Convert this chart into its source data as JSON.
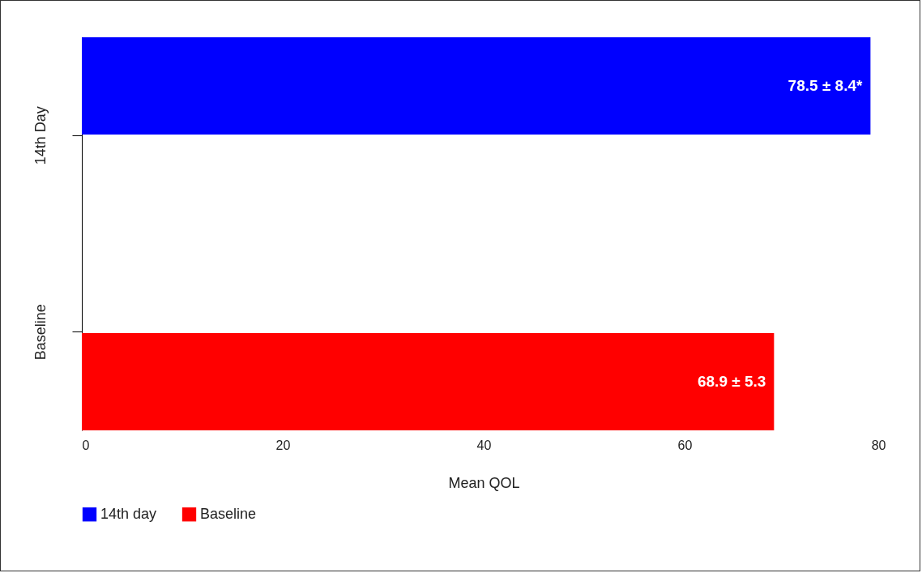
{
  "chart_data": {
    "type": "bar",
    "orientation": "horizontal",
    "xlabel": "Mean QOL",
    "categories": [
      "14th Day",
      "Baseline"
    ],
    "series": [
      {
        "name": "14th day",
        "color": "#0000ff",
        "values": [
          78.5,
          null
        ],
        "value_labels": [
          "78.5 ± 8.4*",
          null
        ]
      },
      {
        "name": "Baseline",
        "color": "#ff0000",
        "values": [
          null,
          68.9
        ],
        "value_labels": [
          null,
          "68.9 ± 5.3"
        ]
      }
    ],
    "xlim": [
      0,
      80
    ],
    "xticks": [
      0,
      20,
      40,
      60,
      80
    ],
    "grid": false,
    "legend": "bottom"
  }
}
